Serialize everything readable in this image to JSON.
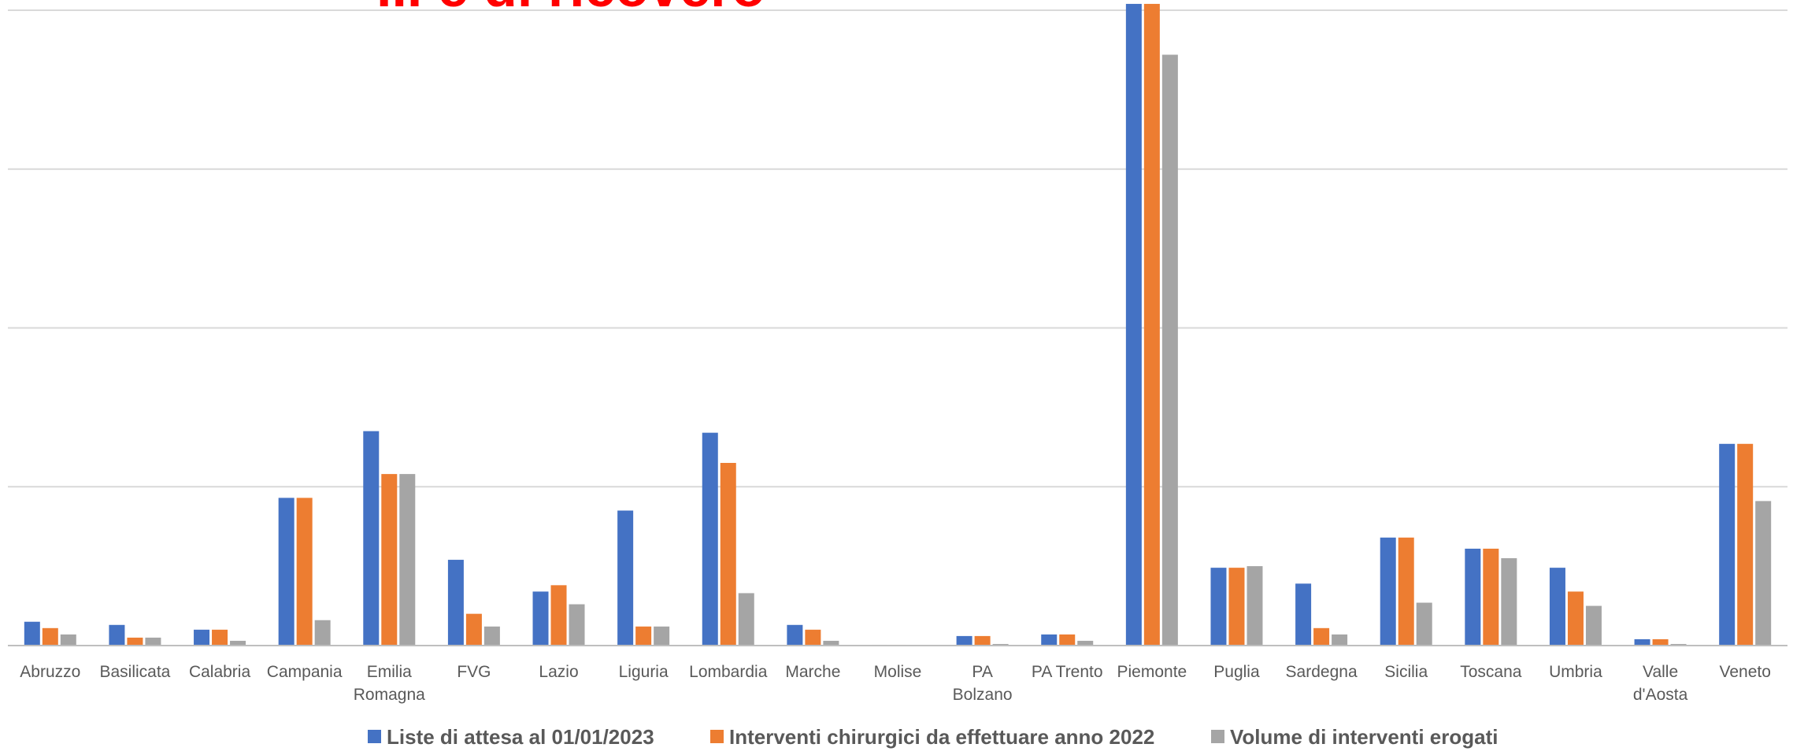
{
  "title_fragment": "... e di ricovero",
  "colors": {
    "title": "#ff0000",
    "grid": "#d9d9d9",
    "axis": "#bfbfbf"
  },
  "chart_data": {
    "type": "bar",
    "categories": [
      [
        "Abruzzo"
      ],
      [
        "Basilicata"
      ],
      [
        "Calabria"
      ],
      [
        "Campania"
      ],
      [
        "Emilia",
        "Romagna"
      ],
      [
        "FVG"
      ],
      [
        "Lazio"
      ],
      [
        "Liguria"
      ],
      [
        "Lombardia"
      ],
      [
        "Marche"
      ],
      [
        "Molise"
      ],
      [
        "PA",
        "Bolzano"
      ],
      [
        "PA Trento"
      ],
      [
        "Piemonte"
      ],
      [
        "Puglia"
      ],
      [
        "Sardegna"
      ],
      [
        "Sicilia"
      ],
      [
        "Toscana"
      ],
      [
        "Umbria"
      ],
      [
        "Valle",
        "d'Aosta"
      ],
      [
        "Veneto"
      ]
    ],
    "series": [
      {
        "name": "Liste di attesa al 01/01/2023",
        "color": "#4472c4",
        "values": [
          0.15,
          0.13,
          0.1,
          0.93,
          1.35,
          0.54,
          0.34,
          0.85,
          1.34,
          0.13,
          0.005,
          0.06,
          0.07,
          4.05,
          0.49,
          0.39,
          0.68,
          0.61,
          0.49,
          0.04,
          1.27
        ]
      },
      {
        "name": "Interventi chirurgici da effettuare anno 2022",
        "color": "#ed7d31",
        "values": [
          0.11,
          0.05,
          0.1,
          0.93,
          1.08,
          0.2,
          0.38,
          0.12,
          1.15,
          0.1,
          0.005,
          0.06,
          0.07,
          4.05,
          0.49,
          0.11,
          0.68,
          0.61,
          0.34,
          0.04,
          1.27
        ]
      },
      {
        "name": "Volume di interventi erogati",
        "color": "#a5a5a5",
        "values": [
          0.07,
          0.05,
          0.03,
          0.16,
          1.08,
          0.12,
          0.26,
          0.12,
          0.33,
          0.03,
          0.003,
          0.01,
          0.03,
          3.72,
          0.5,
          0.07,
          0.27,
          0.55,
          0.25,
          0.01,
          0.91
        ]
      }
    ],
    "ylim": [
      0,
      4.0
    ],
    "grid": true,
    "legend": "bottom-center"
  }
}
